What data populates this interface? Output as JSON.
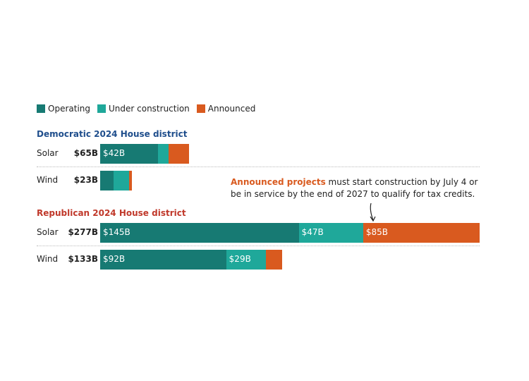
{
  "legend": [
    {
      "label": "Operating",
      "color": "#177a73"
    },
    {
      "label": "Under construction",
      "color": "#1fa89a"
    },
    {
      "label": "Announced",
      "color": "#d95a1f"
    }
  ],
  "annotation": {
    "highlight": "Announced projects",
    "text": " must start construction by July 4 or be in service by the end of 2027 to qualify for tax credits."
  },
  "chart_data": {
    "type": "bar",
    "orientation": "horizontal",
    "stacked": true,
    "unit": "$B",
    "xlim": [
      0,
      277
    ],
    "series_names": [
      "Operating",
      "Under construction",
      "Announced"
    ],
    "groups": [
      {
        "title": "Democratic 2024 House district",
        "title_color": "#1f4e8c",
        "rows": [
          {
            "category": "Solar",
            "total": "$65B",
            "values": [
              42,
              8,
              15
            ],
            "labels": [
              "$42B",
              "",
              ""
            ]
          },
          {
            "category": "Wind",
            "total": "$23B",
            "values": [
              10,
              11,
              2
            ],
            "labels": [
              "",
              "",
              ""
            ]
          }
        ]
      },
      {
        "title": "Republican 2024 House district",
        "title_color": "#c0392b",
        "rows": [
          {
            "category": "Solar",
            "total": "$277B",
            "values": [
              145,
              47,
              85
            ],
            "labels": [
              "$145B",
              "$47B",
              "$85B"
            ]
          },
          {
            "category": "Wind",
            "total": "$133B",
            "values": [
              92,
              29,
              12
            ],
            "labels": [
              "$92B",
              "$29B",
              ""
            ]
          }
        ]
      }
    ]
  }
}
